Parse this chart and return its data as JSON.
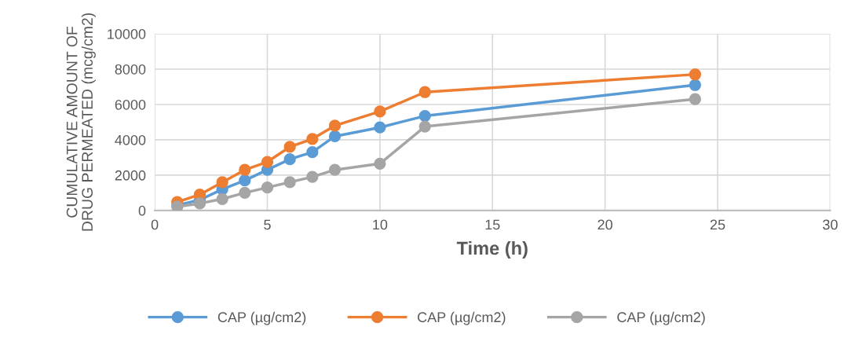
{
  "chart_data": {
    "type": "line",
    "xlabel": "Time (h)",
    "ylabel": "CUMULATIVE AMOUNT OF\nDRUG PERMEATED (mcg/cm2)",
    "x": [
      1,
      2,
      3,
      4,
      5,
      6,
      7,
      8,
      10,
      12,
      24
    ],
    "series": [
      {
        "name": "CAP (µg/cm2)",
        "color": "#5b9bd5",
        "values": [
          300,
          600,
          1200,
          1700,
          2300,
          2900,
          3300,
          4200,
          4700,
          5350,
          7100
        ]
      },
      {
        "name": "CAP (µg/cm2)",
        "color": "#ed7d31",
        "values": [
          480,
          900,
          1600,
          2300,
          2750,
          3600,
          4050,
          4800,
          5600,
          6700,
          7700
        ]
      },
      {
        "name": "CAP (µg/cm2)",
        "color": "#a5a5a5",
        "values": [
          220,
          400,
          650,
          1000,
          1300,
          1600,
          1900,
          2300,
          2650,
          4750,
          6300
        ]
      }
    ],
    "xlim": [
      0,
      30
    ],
    "xticks": [
      0,
      5,
      10,
      15,
      20,
      25,
      30
    ],
    "ylim": [
      0,
      10000
    ],
    "yticks": [
      0,
      2000,
      4000,
      6000,
      8000,
      10000
    ],
    "grid": true,
    "legend": "bottom",
    "marker": "circle",
    "line_style": "solid"
  }
}
